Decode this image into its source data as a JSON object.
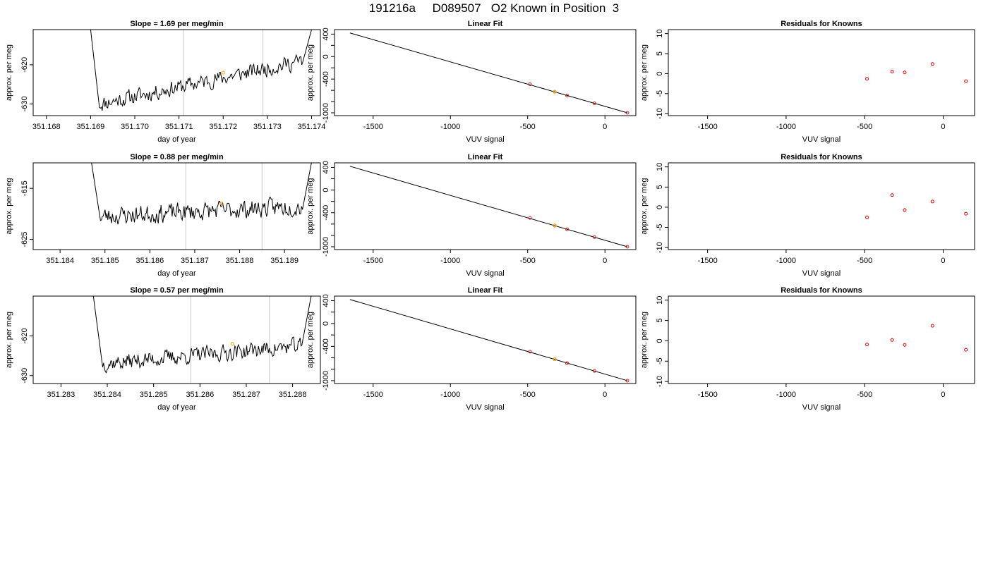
{
  "title": "191216a     D089507   O2 Known in Position  3",
  "chart_data": [
    {
      "type": "line",
      "row": 1,
      "title": "Slope =  1.69  per meg/min",
      "xlabel": "day of year",
      "ylabel": "approx. per meg",
      "xlim": [
        351.1677,
        351.1742
      ],
      "ylim": [
        -633,
        -611
      ],
      "xticks": [
        351.168,
        351.169,
        351.17,
        351.171,
        351.172,
        351.173,
        351.174
      ],
      "xtick_labels": [
        "351.168",
        "351.169",
        "351.170",
        "351.171",
        "351.172",
        "351.173",
        "351.174"
      ],
      "yticks": [
        -630,
        -620
      ],
      "ytick_labels": [
        "-630",
        "-620"
      ],
      "vlines": [
        351.1711,
        351.1729
      ],
      "highlight": [
        351.172,
        -622
      ],
      "trace": {
        "x_start": 351.1692,
        "x_end": 351.1738,
        "base_start": -630,
        "base_end": -619,
        "amplitude": 1.8,
        "points": 220,
        "seed": 11,
        "rise_left": {
          "x": 351.169,
          "y": -611
        },
        "rise_right": {
          "x": 351.174,
          "y": -611
        }
      }
    },
    {
      "type": "line",
      "row": 2,
      "title": "Slope =  0.88  per meg/min",
      "xlabel": "day of year",
      "ylabel": "approx. per meg",
      "xlim": [
        351.1834,
        351.1898
      ],
      "ylim": [
        -627,
        -610
      ],
      "xticks": [
        351.184,
        351.185,
        351.186,
        351.187,
        351.188,
        351.189
      ],
      "xtick_labels": [
        "351.184",
        "351.185",
        "351.186",
        "351.187",
        "351.188",
        "351.189"
      ],
      "yticks": [
        -625,
        -615
      ],
      "ytick_labels": [
        "-625",
        "-615"
      ],
      "vlines": [
        351.1868,
        351.1885
      ],
      "highlight": [
        351.1876,
        -618
      ],
      "trace": {
        "x_start": 351.1849,
        "x_end": 351.1894,
        "base_start": -620.5,
        "base_end": -618.5,
        "amplitude": 1.6,
        "points": 220,
        "seed": 23,
        "rise_left": {
          "x": 351.1847,
          "y": -610
        },
        "rise_right": {
          "x": 351.1896,
          "y": -610
        }
      }
    },
    {
      "type": "line",
      "row": 3,
      "title": "Slope =  0.57  per meg/min",
      "xlabel": "day of year",
      "ylabel": "approx. per meg",
      "xlim": [
        351.2824,
        351.2886
      ],
      "ylim": [
        -632,
        -610
      ],
      "xticks": [
        351.283,
        351.284,
        351.285,
        351.286,
        351.287,
        351.288
      ],
      "xtick_labels": [
        "351.283",
        "351.284",
        "351.285",
        "351.286",
        "351.287",
        "351.288"
      ],
      "yticks": [
        -630,
        -620
      ],
      "ytick_labels": [
        "-630",
        "-620"
      ],
      "vlines": [
        351.2858,
        351.2875
      ],
      "highlight": [
        351.2867,
        -622
      ],
      "trace": {
        "x_start": 351.2839,
        "x_end": 351.2882,
        "base_start": -627,
        "base_end": -622.5,
        "amplitude": 1.8,
        "points": 220,
        "seed": 37,
        "rise_left": {
          "x": 351.2837,
          "y": -610
        },
        "rise_right": {
          "x": 351.2884,
          "y": -610
        }
      }
    },
    {
      "type": "scatter",
      "row": 1,
      "title": "Linear Fit",
      "xlabel": "VUV signal",
      "ylabel": "approx. per meg",
      "xlim": [
        -1750,
        200
      ],
      "ylim": [
        -1050,
        480
      ],
      "xticks": [
        -1500,
        -1000,
        -500,
        0
      ],
      "xtick_labels": [
        "-1500",
        "-1000",
        "-500",
        "0"
      ],
      "yticks": [
        400,
        0,
        -400,
        -1000
      ],
      "ytick_labels": [
        "400",
        "0",
        "-400",
        "-1000"
      ],
      "minor_yticks": [
        200,
        -200,
        -600,
        -800
      ],
      "fit_line": {
        "x": [
          -1650,
          145
        ],
        "y": [
          420,
          -1000
        ]
      },
      "points": {
        "x": [
          -485,
          -325,
          -245,
          -68,
          145
        ],
        "y": [
          -492,
          -625,
          -693,
          -830,
          -1000
        ]
      },
      "highlight": {
        "x": [
          -325
        ],
        "y": [
          -625
        ]
      }
    },
    {
      "type": "scatter",
      "row": 2,
      "title": "Linear Fit",
      "xlabel": "VUV signal",
      "ylabel": "approx. per meg",
      "xlim": [
        -1750,
        200
      ],
      "ylim": [
        -1050,
        480
      ],
      "xticks": [
        -1500,
        -1000,
        -500,
        0
      ],
      "xtick_labels": [
        "-1500",
        "-1000",
        "-500",
        "0"
      ],
      "yticks": [
        400,
        0,
        -400,
        -1000
      ],
      "ytick_labels": [
        "400",
        "0",
        "-400",
        "-1000"
      ],
      "minor_yticks": [
        200,
        -200,
        -600,
        -800
      ],
      "fit_line": {
        "x": [
          -1650,
          145
        ],
        "y": [
          420,
          -1000
        ]
      },
      "points": {
        "x": [
          -485,
          -325,
          -245,
          -68,
          145
        ],
        "y": [
          -492,
          -625,
          -693,
          -830,
          -1000
        ]
      },
      "highlight": {
        "x": [
          -325
        ],
        "y": [
          -625
        ]
      }
    },
    {
      "type": "scatter",
      "row": 3,
      "title": "Linear Fit",
      "xlabel": "VUV signal",
      "ylabel": "approx. per meg",
      "xlim": [
        -1750,
        200
      ],
      "ylim": [
        -1050,
        480
      ],
      "xticks": [
        -1500,
        -1000,
        -500,
        0
      ],
      "xtick_labels": [
        "-1500",
        "-1000",
        "-500",
        "0"
      ],
      "yticks": [
        400,
        0,
        -400,
        -1000
      ],
      "ytick_labels": [
        "400",
        "0",
        "-400",
        "-1000"
      ],
      "minor_yticks": [
        200,
        -200,
        -600,
        -800
      ],
      "fit_line": {
        "x": [
          -1650,
          145
        ],
        "y": [
          420,
          -1000
        ]
      },
      "points": {
        "x": [
          -485,
          -325,
          -245,
          -68,
          145
        ],
        "y": [
          -492,
          -625,
          -693,
          -830,
          -1000
        ]
      },
      "highlight": {
        "x": [
          -325
        ],
        "y": [
          -625
        ]
      }
    },
    {
      "type": "scatter",
      "row": 1,
      "title": "Residuals for Knowns",
      "xlabel": "VUV signal",
      "ylabel": "approx. per meg",
      "xlim": [
        -1750,
        200
      ],
      "ylim": [
        -10.5,
        11
      ],
      "xticks": [
        -1500,
        -1000,
        -500,
        0
      ],
      "xtick_labels": [
        "-1500",
        "-1000",
        "-500",
        "0"
      ],
      "yticks": [
        10,
        5,
        0,
        -5,
        -10
      ],
      "ytick_labels": [
        "10",
        "5",
        "0",
        "-5",
        "-10"
      ],
      "points": {
        "x": [
          -485,
          -325,
          -245,
          -68,
          145
        ],
        "y": [
          -1.3,
          0.5,
          0.3,
          2.4,
          -1.9
        ]
      }
    },
    {
      "type": "scatter",
      "row": 2,
      "title": "Residuals for Knowns",
      "xlabel": "VUV signal",
      "ylabel": "approx. per meg",
      "xlim": [
        -1750,
        200
      ],
      "ylim": [
        -10.5,
        11
      ],
      "xticks": [
        -1500,
        -1000,
        -500,
        0
      ],
      "xtick_labels": [
        "-1500",
        "-1000",
        "-500",
        "0"
      ],
      "yticks": [
        10,
        5,
        0,
        -5,
        -10
      ],
      "ytick_labels": [
        "10",
        "5",
        "0",
        "-5",
        "-10"
      ],
      "points": {
        "x": [
          -485,
          -325,
          -245,
          -68,
          145
        ],
        "y": [
          -2.5,
          3.0,
          -0.7,
          1.4,
          -1.6
        ]
      }
    },
    {
      "type": "scatter",
      "row": 3,
      "title": "Residuals for Knowns",
      "xlabel": "VUV signal",
      "ylabel": "approx. per meg",
      "xlim": [
        -1750,
        200
      ],
      "ylim": [
        -10.5,
        11
      ],
      "xticks": [
        -1500,
        -1000,
        -500,
        0
      ],
      "xtick_labels": [
        "-1500",
        "-1000",
        "-500",
        "0"
      ],
      "yticks": [
        10,
        5,
        0,
        -5,
        -10
      ],
      "ytick_labels": [
        "10",
        "5",
        "0",
        "-5",
        "-10"
      ],
      "points": {
        "x": [
          -485,
          -325,
          -245,
          -68,
          145
        ],
        "y": [
          -0.9,
          0.2,
          -1.0,
          3.7,
          -2.2
        ]
      }
    }
  ],
  "colors": {
    "trace": "#000000",
    "vline": "#c8c8c8",
    "highlight": "#ffa500",
    "residual_points": "#dd0000",
    "fit_points": "#cc2222",
    "fit_line": "#000000"
  }
}
